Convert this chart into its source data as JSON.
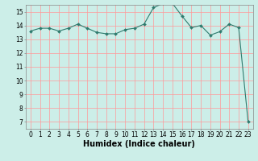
{
  "xlabel": "Humidex (Indice chaleur)",
  "ylabel": "",
  "x_values": [
    0,
    1,
    2,
    3,
    4,
    5,
    6,
    7,
    8,
    9,
    10,
    11,
    12,
    13,
    14,
    15,
    16,
    17,
    18,
    19,
    20,
    21,
    22,
    23
  ],
  "y_values": [
    13.6,
    13.8,
    13.8,
    13.6,
    13.8,
    14.1,
    13.8,
    13.5,
    13.4,
    13.4,
    13.7,
    13.8,
    14.1,
    15.3,
    15.6,
    15.6,
    14.7,
    13.85,
    14.0,
    13.3,
    13.55,
    14.1,
    13.85,
    7.0
  ],
  "line_color": "#2e7b6e",
  "marker": "D",
  "marker_size": 2.0,
  "line_width": 0.8,
  "ylim": [
    6.5,
    15.5
  ],
  "yticks": [
    7,
    8,
    9,
    10,
    11,
    12,
    13,
    14,
    15
  ],
  "xticks": [
    0,
    1,
    2,
    3,
    4,
    5,
    6,
    7,
    8,
    9,
    10,
    11,
    12,
    13,
    14,
    15,
    16,
    17,
    18,
    19,
    20,
    21,
    22,
    23
  ],
  "bg_color": "#cceee8",
  "grid_color": "#ff9999",
  "tick_label_fontsize": 5.5,
  "xlabel_fontsize": 7.0
}
